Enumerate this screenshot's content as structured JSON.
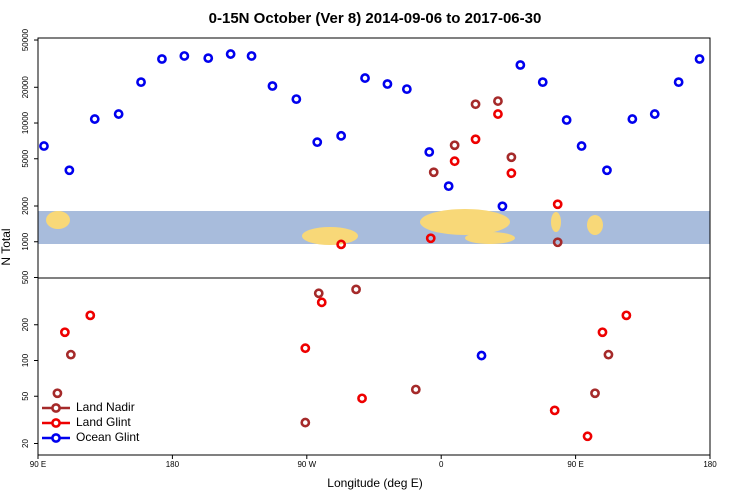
{
  "chart_data": {
    "type": "scatter",
    "title": "0-15N October (Ver 8)   2014-09-06 to 2017-06-30",
    "x_label": "Longitude (deg E)",
    "y_label": "N Total",
    "log_y": true,
    "legend_position": "lower left",
    "xlim": [
      90,
      540
    ],
    "xticks": [
      {
        "value": 90,
        "label": "90 E"
      },
      180,
      {
        "value": 270,
        "label": "90 W"
      },
      {
        "value": 360,
        "label": "0"
      },
      {
        "value": 450,
        "label": "90 E"
      },
      {
        "value": 540,
        "label": "180"
      }
    ],
    "ylim": [
      16,
      52000
    ],
    "yticks": [
      20,
      50,
      100,
      200,
      500,
      1000,
      2000,
      5000,
      10000,
      20000,
      50000
    ],
    "series": [
      {
        "name": "Land Nadir",
        "color": "#a52a2a",
        "x": [
          103,
          112,
          269,
          278,
          303,
          343,
          355,
          369,
          383,
          398,
          407,
          438,
          463,
          472
        ],
        "values": [
          53,
          112,
          30,
          368,
          397,
          57,
          3850,
          6500,
          14400,
          15300,
          5150,
          990,
          53,
          112
        ]
      },
      {
        "name": "Land Glint",
        "color": "#ee0000",
        "x": [
          108,
          125,
          269,
          280,
          293,
          307,
          353,
          369,
          383,
          398,
          407,
          436,
          438,
          458,
          468,
          484
        ],
        "values": [
          173,
          240,
          127,
          309,
          950,
          48,
          1070,
          4770,
          7300,
          11900,
          3780,
          38,
          2070,
          23,
          173,
          240
        ]
      },
      {
        "name": "Ocean Glint",
        "color": "#0000ee",
        "x": [
          94,
          111,
          128,
          144,
          159,
          173,
          188,
          204,
          219,
          233,
          247,
          263,
          277,
          293,
          309,
          324,
          337,
          352,
          365,
          387,
          401,
          413,
          428,
          444,
          454,
          471,
          488,
          503,
          519,
          533
        ],
        "values": [
          6400,
          4000,
          10800,
          11900,
          22100,
          34600,
          36700,
          35200,
          38100,
          36700,
          20500,
          15900,
          6900,
          7800,
          23900,
          21300,
          19300,
          5700,
          2940,
          110,
          1990,
          30800,
          22100,
          10600,
          6400,
          4000,
          10800,
          11900,
          22100,
          34600
        ]
      }
    ]
  }
}
